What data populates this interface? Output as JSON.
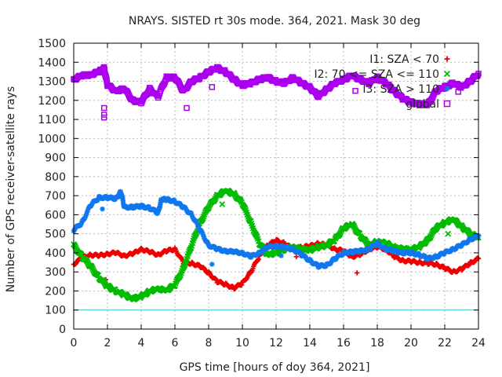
{
  "chart_data": {
    "type": "scatter",
    "title": "NRAYS. SISTED rt 30s mode. 364, 2021. Mask 30 deg",
    "xlabel": "GPS time [hours of doy 364, 2021]",
    "ylabel": "Number of GPS receiver-satellite rays",
    "xlim": [
      0,
      24
    ],
    "ylim": [
      0,
      1500
    ],
    "xticks": [
      0,
      2,
      4,
      6,
      8,
      10,
      12,
      14,
      16,
      18,
      20,
      22,
      24
    ],
    "yticks": [
      0,
      100,
      200,
      300,
      400,
      500,
      600,
      700,
      800,
      900,
      1000,
      1100,
      1200,
      1300,
      1400,
      1500
    ],
    "grid": true,
    "legend_position": "top-right",
    "threshold_line": {
      "y": 100,
      "color": "#33cccc"
    },
    "series": [
      {
        "name": "I1: SZA < 70",
        "marker": "+",
        "color": "#ee0000",
        "points": [
          [
            0,
            340
          ],
          [
            0.5,
            375
          ],
          [
            1,
            390
          ],
          [
            1.5,
            385
          ],
          [
            2,
            395
          ],
          [
            2.5,
            400
          ],
          [
            3,
            385
          ],
          [
            3.5,
            395
          ],
          [
            4,
            420
          ],
          [
            4.5,
            405
          ],
          [
            5,
            390
          ],
          [
            5.5,
            410
          ],
          [
            6,
            420
          ],
          [
            6.5,
            350
          ],
          [
            7,
            345
          ],
          [
            7.5,
            330
          ],
          [
            8,
            295
          ],
          [
            8.5,
            250
          ],
          [
            9,
            235
          ],
          [
            9.5,
            215
          ],
          [
            10,
            240
          ],
          [
            10.5,
            300
          ],
          [
            11,
            380
          ],
          [
            11.5,
            440
          ],
          [
            12,
            465
          ],
          [
            12.5,
            450
          ],
          [
            13,
            420
          ],
          [
            13.5,
            430
          ],
          [
            14,
            435
          ],
          [
            14.5,
            450
          ],
          [
            15,
            440
          ],
          [
            15.5,
            420
          ],
          [
            16,
            410
          ],
          [
            16.5,
            380
          ],
          [
            17,
            390
          ],
          [
            17.5,
            420
          ],
          [
            18,
            430
          ],
          [
            18.5,
            420
          ],
          [
            19,
            380
          ],
          [
            19.5,
            360
          ],
          [
            20,
            355
          ],
          [
            20.5,
            350
          ],
          [
            21,
            345
          ],
          [
            21.5,
            340
          ],
          [
            22,
            320
          ],
          [
            22.5,
            300
          ],
          [
            23,
            315
          ],
          [
            23.5,
            345
          ],
          [
            24,
            370
          ]
        ],
        "outliers": [
          [
            1.9,
            260
          ],
          [
            13.2,
            380
          ],
          [
            16.8,
            295
          ],
          [
            20.2,
            390
          ]
        ]
      },
      {
        "name": "I2: 70 <= SZA <= 110",
        "marker": "x",
        "color": "#00bb00",
        "points": [
          [
            0,
            440
          ],
          [
            0.5,
            380
          ],
          [
            1,
            330
          ],
          [
            1.5,
            270
          ],
          [
            2,
            225
          ],
          [
            2.5,
            200
          ],
          [
            3,
            180
          ],
          [
            3.5,
            160
          ],
          [
            4,
            170
          ],
          [
            4.5,
            200
          ],
          [
            5,
            210
          ],
          [
            5.5,
            205
          ],
          [
            6,
            230
          ],
          [
            6.5,
            320
          ],
          [
            7,
            440
          ],
          [
            7.5,
            560
          ],
          [
            8,
            640
          ],
          [
            8.5,
            700
          ],
          [
            9,
            725
          ],
          [
            9.5,
            710
          ],
          [
            10,
            660
          ],
          [
            10.5,
            560
          ],
          [
            11,
            450
          ],
          [
            11.5,
            390
          ],
          [
            12,
            400
          ],
          [
            12.5,
            420
          ],
          [
            13,
            430
          ],
          [
            13.5,
            420
          ],
          [
            14,
            415
          ],
          [
            14.5,
            430
          ],
          [
            15,
            440
          ],
          [
            15.5,
            470
          ],
          [
            16,
            530
          ],
          [
            16.5,
            550
          ],
          [
            17,
            490
          ],
          [
            17.5,
            440
          ],
          [
            18,
            460
          ],
          [
            18.5,
            450
          ],
          [
            19,
            430
          ],
          [
            19.5,
            420
          ],
          [
            20,
            420
          ],
          [
            20.5,
            430
          ],
          [
            21,
            470
          ],
          [
            21.5,
            530
          ],
          [
            22,
            560
          ],
          [
            22.5,
            575
          ],
          [
            23,
            540
          ],
          [
            23.5,
            500
          ],
          [
            24,
            480
          ]
        ],
        "outliers": [
          [
            8.8,
            655
          ],
          [
            22.2,
            500
          ]
        ]
      },
      {
        "name": "I3: SZA > 110",
        "marker": "*",
        "color": "#1177ee",
        "points": [
          [
            0,
            520
          ],
          [
            0.5,
            560
          ],
          [
            1,
            650
          ],
          [
            1.5,
            690
          ],
          [
            2,
            690
          ],
          [
            2.5,
            685
          ],
          [
            2.8,
            720
          ],
          [
            3,
            640
          ],
          [
            3.5,
            640
          ],
          [
            4,
            645
          ],
          [
            4.5,
            635
          ],
          [
            5,
            610
          ],
          [
            5.2,
            680
          ],
          [
            5.5,
            680
          ],
          [
            6,
            670
          ],
          [
            6.5,
            640
          ],
          [
            7,
            600
          ],
          [
            7.5,
            520
          ],
          [
            8,
            440
          ],
          [
            8.5,
            420
          ],
          [
            9,
            410
          ],
          [
            9.5,
            405
          ],
          [
            10,
            400
          ],
          [
            10.5,
            380
          ],
          [
            11,
            400
          ],
          [
            11.5,
            430
          ],
          [
            12,
            435
          ],
          [
            12.5,
            430
          ],
          [
            13,
            420
          ],
          [
            13.5,
            390
          ],
          [
            14,
            360
          ],
          [
            14.5,
            330
          ],
          [
            15,
            335
          ],
          [
            15.5,
            370
          ],
          [
            16,
            400
          ],
          [
            16.5,
            405
          ],
          [
            17,
            410
          ],
          [
            17.5,
            420
          ],
          [
            18,
            450
          ],
          [
            18.5,
            420
          ],
          [
            19,
            410
          ],
          [
            19.5,
            400
          ],
          [
            20,
            400
          ],
          [
            20.5,
            390
          ],
          [
            21,
            370
          ],
          [
            21.5,
            380
          ],
          [
            22,
            400
          ],
          [
            22.5,
            420
          ],
          [
            23,
            440
          ],
          [
            23.5,
            470
          ],
          [
            24,
            490
          ]
        ],
        "outliers": [
          [
            1.7,
            630
          ],
          [
            8.2,
            340
          ],
          [
            12.3,
            385
          ]
        ]
      },
      {
        "name": "global",
        "marker": "square",
        "color": "#aa00ee",
        "points": [
          [
            0,
            1310
          ],
          [
            0.5,
            1330
          ],
          [
            1,
            1335
          ],
          [
            1.5,
            1350
          ],
          [
            1.8,
            1370
          ],
          [
            2,
            1280
          ],
          [
            2.5,
            1250
          ],
          [
            3,
            1260
          ],
          [
            3.5,
            1200
          ],
          [
            4,
            1190
          ],
          [
            4.5,
            1260
          ],
          [
            5,
            1220
          ],
          [
            5.5,
            1320
          ],
          [
            6,
            1320
          ],
          [
            6.5,
            1250
          ],
          [
            7,
            1300
          ],
          [
            7.5,
            1320
          ],
          [
            8,
            1350
          ],
          [
            8.5,
            1370
          ],
          [
            9,
            1350
          ],
          [
            9.5,
            1310
          ],
          [
            10,
            1280
          ],
          [
            10.5,
            1290
          ],
          [
            11,
            1310
          ],
          [
            11.5,
            1320
          ],
          [
            12,
            1300
          ],
          [
            12.5,
            1290
          ],
          [
            13,
            1320
          ],
          [
            13.5,
            1290
          ],
          [
            14,
            1270
          ],
          [
            14.5,
            1220
          ],
          [
            15,
            1260
          ],
          [
            15.5,
            1290
          ],
          [
            16,
            1310
          ],
          [
            16.5,
            1330
          ],
          [
            17,
            1310
          ],
          [
            17.5,
            1290
          ],
          [
            18,
            1320
          ],
          [
            18.5,
            1290
          ],
          [
            19,
            1250
          ],
          [
            19.5,
            1210
          ],
          [
            20,
            1190
          ],
          [
            20.5,
            1180
          ],
          [
            21,
            1180
          ],
          [
            21.5,
            1250
          ],
          [
            22,
            1270
          ],
          [
            22.5,
            1290
          ],
          [
            23,
            1270
          ],
          [
            23.5,
            1300
          ],
          [
            24,
            1340
          ]
        ],
        "outliers": [
          [
            1.8,
            1160
          ],
          [
            1.8,
            1125
          ],
          [
            1.8,
            1110
          ],
          [
            6.7,
            1160
          ],
          [
            8.2,
            1270
          ],
          [
            16.7,
            1250
          ],
          [
            22.8,
            1245
          ]
        ]
      }
    ]
  }
}
